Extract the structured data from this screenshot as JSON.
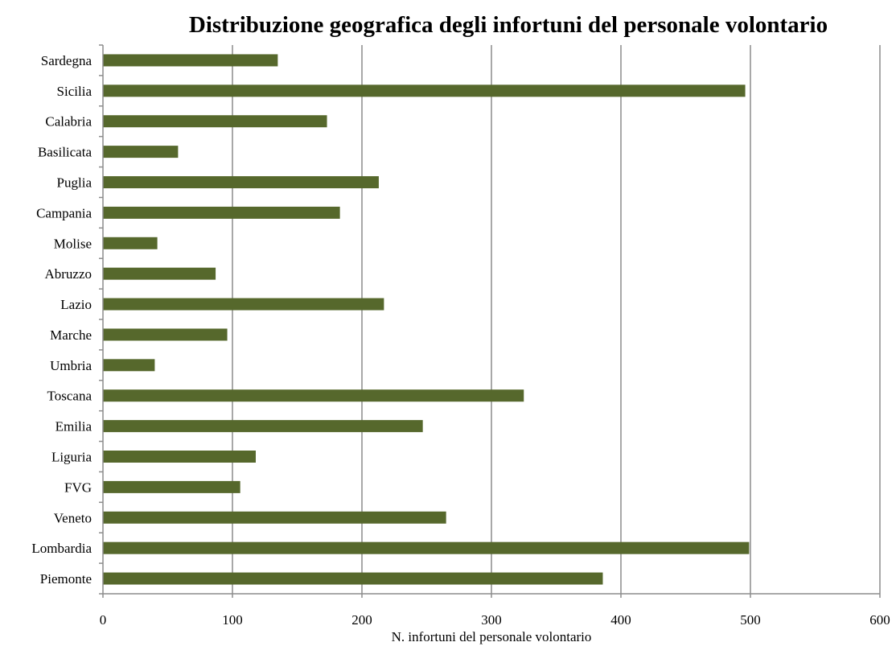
{
  "chart_data": {
    "type": "bar",
    "orientation": "horizontal",
    "title": "Distribuzione geografica degli infortuni del personale volontario",
    "xlabel": "N. infortuni del personale volontario",
    "ylabel": "",
    "categories": [
      "Piemonte",
      "Lombardia",
      "Veneto",
      "FVG",
      "Liguria",
      "Emilia",
      "Toscana",
      "Umbria",
      "Marche",
      "Lazio",
      "Abruzzo",
      "Molise",
      "Campania",
      "Puglia",
      "Basilicata",
      "Calabria",
      "Sicilia",
      "Sardegna"
    ],
    "values": [
      386,
      499,
      265,
      106,
      118,
      247,
      325,
      40,
      96,
      217,
      87,
      42,
      183,
      213,
      58,
      173,
      496,
      135
    ],
    "xlim": [
      0,
      600
    ],
    "xticks": [
      "0",
      "100",
      "200",
      "300",
      "400",
      "500",
      "600"
    ],
    "grid": "vertical",
    "legend": "none",
    "colors": {
      "bar": "#56682c",
      "grid": "#8c8c8c",
      "axis": "#8c8c8c",
      "text": "#000000"
    }
  }
}
